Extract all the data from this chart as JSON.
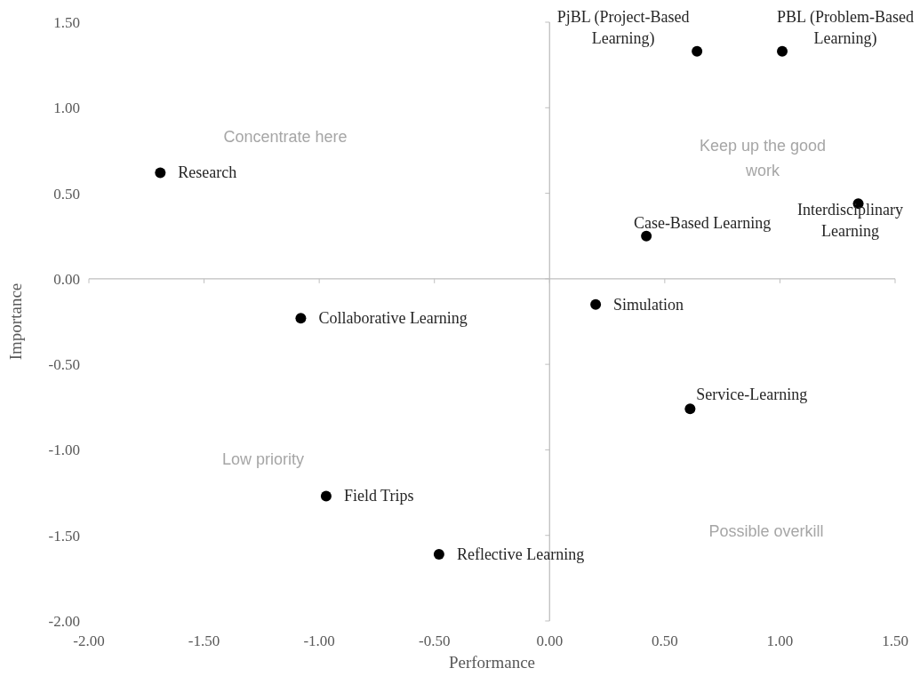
{
  "chart_data": {
    "type": "scatter",
    "xlabel": "Performance",
    "ylabel": "Importance",
    "xlim": [
      -2,
      1.5
    ],
    "ylim": [
      -2,
      1.5
    ],
    "xticks": [
      {
        "value": -2,
        "label": "-2.00"
      },
      {
        "value": -1.5,
        "label": "-1.50"
      },
      {
        "value": -1,
        "label": "-1.00"
      },
      {
        "value": -0.5,
        "label": "-0.50"
      },
      {
        "value": 0,
        "label": "0.00"
      },
      {
        "value": 0.5,
        "label": "0.50"
      },
      {
        "value": 1,
        "label": "1.00"
      },
      {
        "value": 1.5,
        "label": "1.50"
      }
    ],
    "yticks": [
      {
        "value": -2,
        "label": "-2.00"
      },
      {
        "value": -1.5,
        "label": "-1.50"
      },
      {
        "value": -1,
        "label": "-1.00"
      },
      {
        "value": -0.5,
        "label": "-0.50"
      },
      {
        "value": 0,
        "label": "0.00"
      },
      {
        "value": 0.5,
        "label": "0.50"
      },
      {
        "value": 1,
        "label": "1.00"
      },
      {
        "value": 1.5,
        "label": "1.50"
      }
    ],
    "marker": "circle",
    "series": [
      {
        "color": "#000000",
        "x": [
          -1.69,
          0.64,
          1.01,
          1.34,
          0.42,
          0.2,
          -1.08,
          0.61,
          -0.97,
          -0.48
        ],
        "values": [
          0.62,
          1.33,
          1.33,
          0.44,
          0.25,
          -0.15,
          -0.23,
          -0.76,
          -1.27,
          -1.61
        ]
      }
    ],
    "annotations": [
      {
        "text": "Research",
        "x": -1.69,
        "y": 0.62
      },
      {
        "text": "PjBL (Project-Based Learning)",
        "x": 0.64,
        "y": 1.33
      },
      {
        "text": "PBL (Problem-Based Learning)",
        "x": 1.01,
        "y": 1.33
      },
      {
        "text": "Interdisciplinary Learning",
        "x": 1.34,
        "y": 0.44
      },
      {
        "text": "Case-Based Learning",
        "x": 0.42,
        "y": 0.25
      },
      {
        "text": "Simulation",
        "x": 0.2,
        "y": -0.15
      },
      {
        "text": "Collaborative Learning",
        "x": -1.08,
        "y": -0.23
      },
      {
        "text": "Service-Learning",
        "x": 0.61,
        "y": -0.76
      },
      {
        "text": "Field Trips",
        "x": -0.97,
        "y": -1.27
      },
      {
        "text": "Reflective Learning",
        "x": -0.48,
        "y": -1.61
      },
      "Concentrate here",
      "Keep up the good work",
      "Low priority",
      "Possible overkill"
    ]
  }
}
